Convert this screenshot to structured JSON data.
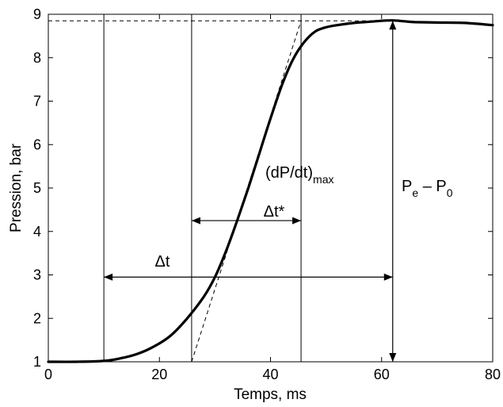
{
  "chart_data": {
    "type": "line",
    "xlabel": "Temps, ms",
    "ylabel": "Pression, bar",
    "xlim": [
      0,
      80
    ],
    "ylim": [
      1,
      9
    ],
    "xticks": [
      0,
      20,
      40,
      60,
      80
    ],
    "yticks": [
      1,
      2,
      3,
      4,
      5,
      6,
      7,
      8,
      9
    ],
    "grid": false,
    "series": [
      {
        "x": [
          0,
          5,
          10,
          13,
          16,
          19,
          22,
          25,
          28,
          30,
          32,
          34,
          36,
          38,
          40,
          42,
          44,
          46,
          48,
          50,
          52,
          55,
          58,
          60,
          62,
          64,
          66,
          70,
          75,
          80
        ],
        "y": [
          1.0,
          1.0,
          1.02,
          1.08,
          1.18,
          1.35,
          1.6,
          2.0,
          2.5,
          2.95,
          3.55,
          4.25,
          5.0,
          5.8,
          6.6,
          7.35,
          7.95,
          8.35,
          8.6,
          8.7,
          8.75,
          8.8,
          8.83,
          8.85,
          8.86,
          8.84,
          8.82,
          8.81,
          8.8,
          8.75
        ]
      }
    ],
    "annotations": {
      "tangent": {
        "x": [
          25.8,
          45.5
        ],
        "y": [
          1.0,
          8.85
        ]
      },
      "pmax_level": 8.85,
      "vlines_x": [
        10,
        25.8,
        45.5,
        62
      ],
      "delta_t": {
        "label": "Δt",
        "x_from": 10,
        "x_to": 62,
        "y": 2.95
      },
      "delta_t_star": {
        "label": "Δt*",
        "x_from": 25.8,
        "x_to": 45.5,
        "y": 4.25
      },
      "slope": {
        "label": "(dP/dt)",
        "subscript": "max"
      },
      "pressure_rise": {
        "label_p": "P",
        "sub_e": "e",
        "minus": " – P",
        "sub_0": "0",
        "x": 62,
        "y_from": 1,
        "y_to": 8.85
      }
    }
  }
}
